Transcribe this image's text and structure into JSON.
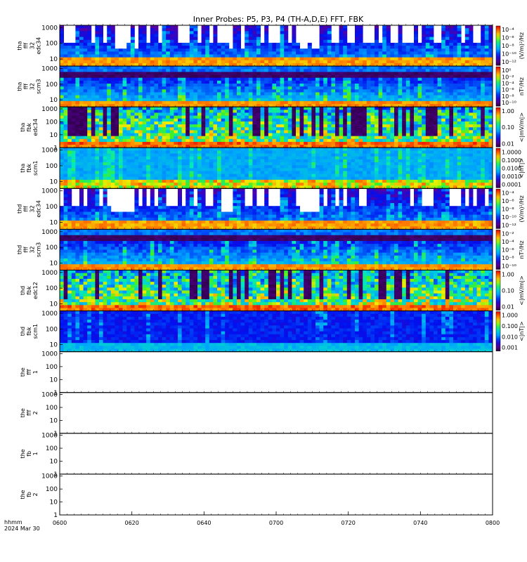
{
  "chart_data": {
    "type": "heatmap",
    "title": "Inner Probes: P5, P3, P4 (TH-A,D,E) FFT, FBK",
    "x_axis": {
      "ticks": [
        "0600",
        "0620",
        "0640",
        "0700",
        "0720",
        "0740",
        "0800"
      ],
      "range": [
        "06:00",
        "08:00"
      ],
      "label_line1": "hhmm",
      "label_line2": "2024 Mar 30"
    },
    "panels": [
      {
        "ylabel": [
          "tha",
          "fff",
          "32",
          "edc34"
        ],
        "yticks": [
          "10",
          "100",
          "1000"
        ],
        "y_min_exp": 0.55,
        "colorbar_label": "(V/m)²/Hz",
        "colorbar_ticks": [
          "10⁻⁴",
          "10⁻⁶",
          "10⁻⁸",
          "10⁻¹⁰",
          "10⁻¹²"
        ],
        "filled": true,
        "style": "efield"
      },
      {
        "ylabel": [
          "tha",
          "fff",
          "32",
          "scm3"
        ],
        "yticks": [
          "10",
          "100",
          "1000"
        ],
        "y_min_exp": 0.55,
        "colorbar_label": "nT²/Hz",
        "colorbar_ticks": [
          "10⁰",
          "10⁻²",
          "10⁻⁴",
          "10⁻⁶",
          "10⁻⁸",
          "10⁻¹⁰"
        ],
        "filled": true,
        "style": "scm"
      },
      {
        "ylabel": [
          "tha",
          "fbk",
          "edc34"
        ],
        "yticks": [
          "1",
          "10",
          "100",
          "1000"
        ],
        "y_min_exp": 0,
        "colorbar_label": "<|mV/m|>",
        "colorbar_ticks": [
          "1.00",
          "0.10",
          "0.01"
        ],
        "filled": true,
        "style": "fbk_e"
      },
      {
        "ylabel": [
          "tha",
          "fbk",
          "scm1"
        ],
        "yticks": [
          "10",
          "100",
          "1000"
        ],
        "y_min_exp": 0.55,
        "colorbar_label": "<|nT|>",
        "colorbar_ticks": [
          "1.0000",
          "0.1000",
          "0.0100",
          "0.0010",
          "0.0001"
        ],
        "filled": true,
        "style": "fbk_b"
      },
      {
        "ylabel": [
          "thd",
          "fff",
          "32",
          "edc34"
        ],
        "yticks": [
          "10",
          "100",
          "1000"
        ],
        "y_min_exp": 0.55,
        "colorbar_label": "(V/m)²/Hz",
        "colorbar_ticks": [
          "10⁻⁴",
          "10⁻⁶",
          "10⁻⁸",
          "10⁻¹⁰",
          "10⁻¹²"
        ],
        "filled": true,
        "style": "efield"
      },
      {
        "ylabel": [
          "thd",
          "fff",
          "32",
          "scm3"
        ],
        "yticks": [
          "10",
          "100",
          "1000"
        ],
        "y_min_exp": 0.55,
        "colorbar_label": "nT²/Hz",
        "colorbar_ticks": [
          "10⁻²",
          "10⁻⁴",
          "10⁻⁶",
          "10⁻⁸",
          "10⁻¹⁰"
        ],
        "filled": true,
        "style": "scm"
      },
      {
        "ylabel": [
          "thd",
          "fbk",
          "edc12"
        ],
        "yticks": [
          "10",
          "100",
          "1000"
        ],
        "y_min_exp": 0.55,
        "colorbar_label": "<|mV/m|>",
        "colorbar_ticks": [
          "1.00",
          "0.10",
          "0.01"
        ],
        "filled": true,
        "style": "fbk_e"
      },
      {
        "ylabel": [
          "thd",
          "fbk",
          "scm1"
        ],
        "yticks": [
          "10",
          "100",
          "1000"
        ],
        "y_min_exp": 0.55,
        "colorbar_label": "<|nT|>",
        "colorbar_ticks": [
          "1.000",
          "0.100",
          "0.010",
          "0.001"
        ],
        "filled": true,
        "style": "fbk_b2"
      },
      {
        "ylabel": [
          "the",
          "fff",
          "1"
        ],
        "yticks": [
          "1",
          "10",
          "100",
          "1000"
        ],
        "y_min_exp": 0,
        "colorbar_label": "",
        "colorbar_ticks": [],
        "filled": false,
        "style": "none"
      },
      {
        "ylabel": [
          "the",
          "fff",
          "2"
        ],
        "yticks": [
          "1",
          "10",
          "100",
          "1000"
        ],
        "y_min_exp": 0,
        "colorbar_label": "",
        "colorbar_ticks": [],
        "filled": false,
        "style": "none"
      },
      {
        "ylabel": [
          "the",
          "fb",
          "1"
        ],
        "yticks": [
          "1",
          "10",
          "100",
          "1000"
        ],
        "y_min_exp": 0,
        "colorbar_label": "",
        "colorbar_ticks": [],
        "filled": false,
        "style": "none"
      },
      {
        "ylabel": [
          "the",
          "fb",
          "2"
        ],
        "yticks": [
          "1",
          "10",
          "100",
          "1000"
        ],
        "y_min_exp": 0,
        "colorbar_label": "",
        "colorbar_ticks": [],
        "filled": false,
        "style": "none"
      }
    ]
  }
}
